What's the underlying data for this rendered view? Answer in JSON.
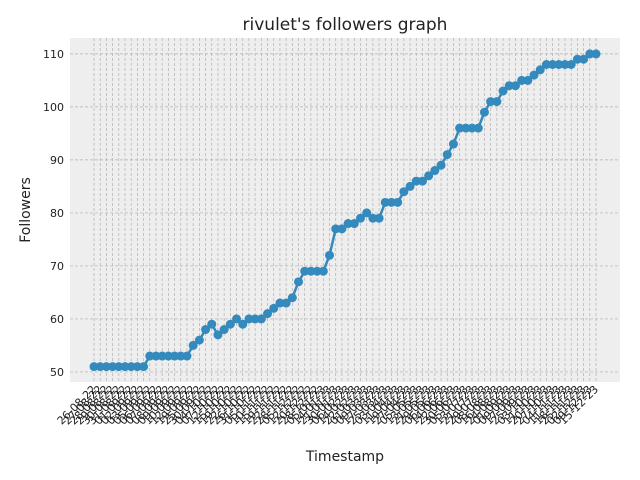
{
  "chart_data": {
    "type": "line",
    "title": "rivulet's followers graph",
    "x_label": "Timestamp",
    "y_label": "Followers",
    "categories": [
      "26-08-22",
      "27-08-22",
      "28-08-22",
      "29-08-22",
      "30-08-22",
      "31-08-22",
      "01-09-22",
      "02-09-22",
      "03-09-22",
      "05-09-22",
      "06-09-22",
      "07-09-22",
      "08-09-22",
      "09-09-22",
      "10-09-22",
      "12-09-22",
      "19-09-22",
      "25-09-22",
      "30-09-22",
      "04-10-22",
      "07-10-22",
      "12-10-22",
      "15-10-22",
      "19-10-22",
      "22-10-22",
      "26-10-22",
      "31-10-22",
      "05-11-22",
      "10-11-22",
      "15-11-22",
      "19-11-22",
      "22-11-22",
      "28-11-22",
      "05-12-22",
      "12-12-22",
      "20-12-22",
      "28-12-22",
      "05-01-23",
      "14-01-23",
      "21-01-23",
      "30-01-23",
      "06-02-23",
      "14-02-23",
      "22-02-23",
      "01-03-23",
      "09-03-23",
      "17-03-23",
      "25-03-23",
      "03-04-23",
      "11-04-23",
      "19-04-23",
      "27-04-23",
      "05-05-23",
      "13-05-23",
      "21-05-23",
      "29-05-23",
      "06-06-23",
      "14-06-23",
      "22-06-23",
      "30-06-23",
      "05-07-23",
      "13-07-23",
      "21-07-23",
      "29-07-23",
      "08-08-23",
      "16-08-23",
      "24-08-23",
      "01-09-23",
      "09-09-23",
      "17-09-23",
      "25-09-23",
      "03-10-23",
      "11-10-23",
      "20-10-23",
      "27-10-23",
      "04-11-23",
      "11-11-23",
      "18-11-23",
      "25-11-23",
      "02-12-23",
      "09-12-23",
      "15-12-23"
    ],
    "series": [
      {
        "name": "Followers",
        "color": "#348ABD",
        "values": [
          51,
          51,
          51,
          51,
          51,
          51,
          51,
          51,
          51,
          53,
          53,
          53,
          53,
          53,
          53,
          53,
          55,
          56,
          58,
          59,
          57,
          58,
          59,
          60,
          59,
          60,
          60,
          60,
          61,
          62,
          63,
          63,
          64,
          67,
          69,
          69,
          69,
          69,
          72,
          77,
          77,
          78,
          78,
          79,
          80,
          79,
          79,
          82,
          82,
          82,
          84,
          85,
          86,
          86,
          87,
          88,
          89,
          91,
          93,
          96,
          96,
          96,
          96,
          99,
          101,
          101,
          103,
          104,
          104,
          105,
          105,
          106,
          107,
          108,
          108,
          108,
          108,
          108,
          109,
          109,
          110,
          110
        ]
      }
    ],
    "ylim": [
      48.1,
      113
    ],
    "yticks": [
      50,
      60,
      70,
      80,
      90,
      100,
      110
    ],
    "grid": true
  }
}
